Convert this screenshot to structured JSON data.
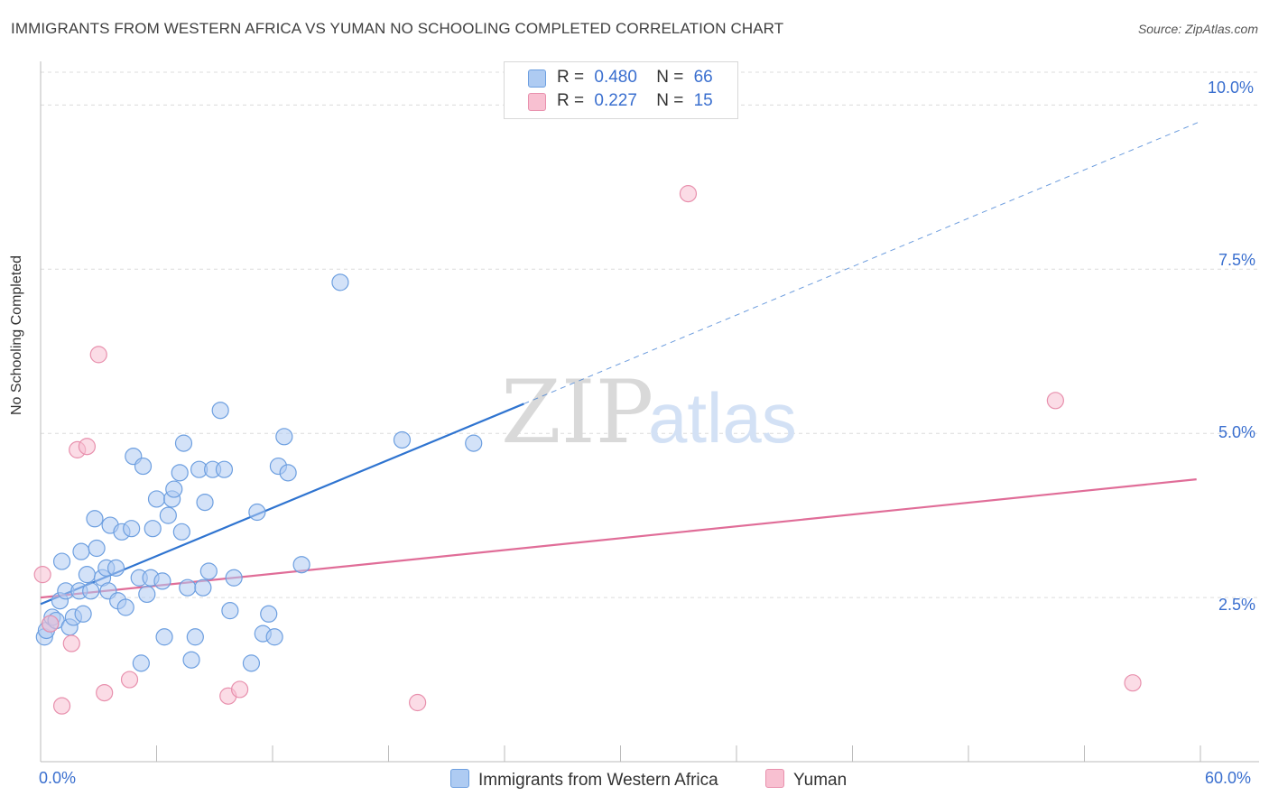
{
  "title": "IMMIGRANTS FROM WESTERN AFRICA VS YUMAN NO SCHOOLING COMPLETED CORRELATION CHART",
  "source": "Source: ZipAtlas.com",
  "watermark": {
    "zip": "ZIP",
    "atlas": "atlas"
  },
  "legend": {
    "rows": [
      {
        "r_label": "R =",
        "r_value": "0.480",
        "n_label": "N =",
        "n_value": "66"
      },
      {
        "r_label": "R =",
        "r_value": "0.227",
        "n_label": "N =",
        "n_value": "15"
      }
    ]
  },
  "bottom_legend": {
    "blue": "Immigrants from Western Africa",
    "pink": "Yuman"
  },
  "colors": {
    "blue_fill": "#aecbf2",
    "blue_stroke": "#6d9fe0",
    "blue_line": "#2f74d0",
    "pink_fill": "#f8c0d1",
    "pink_stroke": "#e890ad",
    "pink_line": "#e06d98",
    "axis_text": "#3a6fcf",
    "grid": "#dcdcdc"
  },
  "chart_data": {
    "type": "scatter",
    "title": "IMMIGRANTS FROM WESTERN AFRICA VS YUMAN NO SCHOOLING COMPLETED CORRELATION CHART",
    "xlabel": "",
    "ylabel": "No Schooling Completed",
    "xlim": [
      0,
      60
    ],
    "ylim": [
      0,
      10.5
    ],
    "x_tick_labels": [
      "0.0%",
      "60.0%"
    ],
    "y_tick_labels": [
      "2.5%",
      "5.0%",
      "7.5%",
      "10.0%"
    ],
    "y_ticks": [
      2.5,
      5.0,
      7.5,
      10.0
    ],
    "x_minor_ticks": [
      0,
      6,
      12,
      18,
      24,
      30,
      36,
      42,
      48,
      54,
      60
    ],
    "series": [
      {
        "name": "Immigrants from Western Africa",
        "color": "blue",
        "points": [
          [
            0.2,
            1.9
          ],
          [
            0.3,
            2.0
          ],
          [
            0.5,
            2.1
          ],
          [
            0.6,
            2.2
          ],
          [
            0.8,
            2.15
          ],
          [
            1.0,
            2.45
          ],
          [
            1.1,
            3.05
          ],
          [
            1.3,
            2.6
          ],
          [
            1.5,
            2.05
          ],
          [
            1.7,
            2.2
          ],
          [
            2.0,
            2.6
          ],
          [
            2.1,
            3.2
          ],
          [
            2.2,
            2.25
          ],
          [
            2.4,
            2.85
          ],
          [
            2.6,
            2.6
          ],
          [
            2.8,
            3.7
          ],
          [
            2.9,
            3.25
          ],
          [
            3.2,
            2.8
          ],
          [
            3.4,
            2.95
          ],
          [
            3.5,
            2.6
          ],
          [
            3.6,
            3.6
          ],
          [
            3.9,
            2.95
          ],
          [
            4.0,
            2.45
          ],
          [
            4.2,
            3.5
          ],
          [
            4.4,
            2.35
          ],
          [
            4.7,
            3.55
          ],
          [
            4.8,
            4.65
          ],
          [
            5.1,
            2.8
          ],
          [
            5.2,
            1.5
          ],
          [
            5.3,
            4.5
          ],
          [
            5.5,
            2.55
          ],
          [
            5.7,
            2.8
          ],
          [
            5.8,
            3.55
          ],
          [
            6.0,
            4.0
          ],
          [
            6.3,
            2.75
          ],
          [
            6.4,
            1.9
          ],
          [
            6.6,
            3.75
          ],
          [
            6.8,
            4.0
          ],
          [
            6.9,
            4.15
          ],
          [
            7.2,
            4.4
          ],
          [
            7.3,
            3.5
          ],
          [
            7.4,
            4.85
          ],
          [
            7.6,
            2.65
          ],
          [
            7.8,
            1.55
          ],
          [
            8.0,
            1.9
          ],
          [
            8.2,
            4.45
          ],
          [
            8.4,
            2.65
          ],
          [
            8.5,
            3.95
          ],
          [
            8.7,
            2.9
          ],
          [
            8.9,
            4.45
          ],
          [
            9.3,
            5.35
          ],
          [
            9.5,
            4.45
          ],
          [
            9.8,
            2.3
          ],
          [
            10.0,
            2.8
          ],
          [
            10.9,
            1.5
          ],
          [
            11.2,
            3.8
          ],
          [
            11.5,
            1.95
          ],
          [
            11.8,
            2.25
          ],
          [
            12.1,
            1.9
          ],
          [
            12.3,
            4.5
          ],
          [
            12.6,
            4.95
          ],
          [
            12.8,
            4.4
          ],
          [
            13.5,
            3.0
          ],
          [
            15.5,
            7.3
          ],
          [
            18.7,
            4.9
          ],
          [
            22.4,
            4.85
          ]
        ],
        "trend": {
          "x0": 0,
          "y0": 2.4,
          "x1": 25,
          "y1": 5.45,
          "dashed_to_x": 60,
          "dashed_to_y": 9.75
        }
      },
      {
        "name": "Yuman",
        "color": "pink",
        "points": [
          [
            0.1,
            2.85
          ],
          [
            0.5,
            2.1
          ],
          [
            1.1,
            0.85
          ],
          [
            1.6,
            1.8
          ],
          [
            1.9,
            4.75
          ],
          [
            2.4,
            4.8
          ],
          [
            3.0,
            6.2
          ],
          [
            3.3,
            1.05
          ],
          [
            4.6,
            1.25
          ],
          [
            9.7,
            1.0
          ],
          [
            10.3,
            1.1
          ],
          [
            19.5,
            0.9
          ],
          [
            33.5,
            8.65
          ],
          [
            52.5,
            5.5
          ],
          [
            56.5,
            1.2
          ]
        ],
        "trend": {
          "x0": 0,
          "y0": 2.5,
          "x1": 59.8,
          "y1": 4.3
        }
      }
    ]
  }
}
